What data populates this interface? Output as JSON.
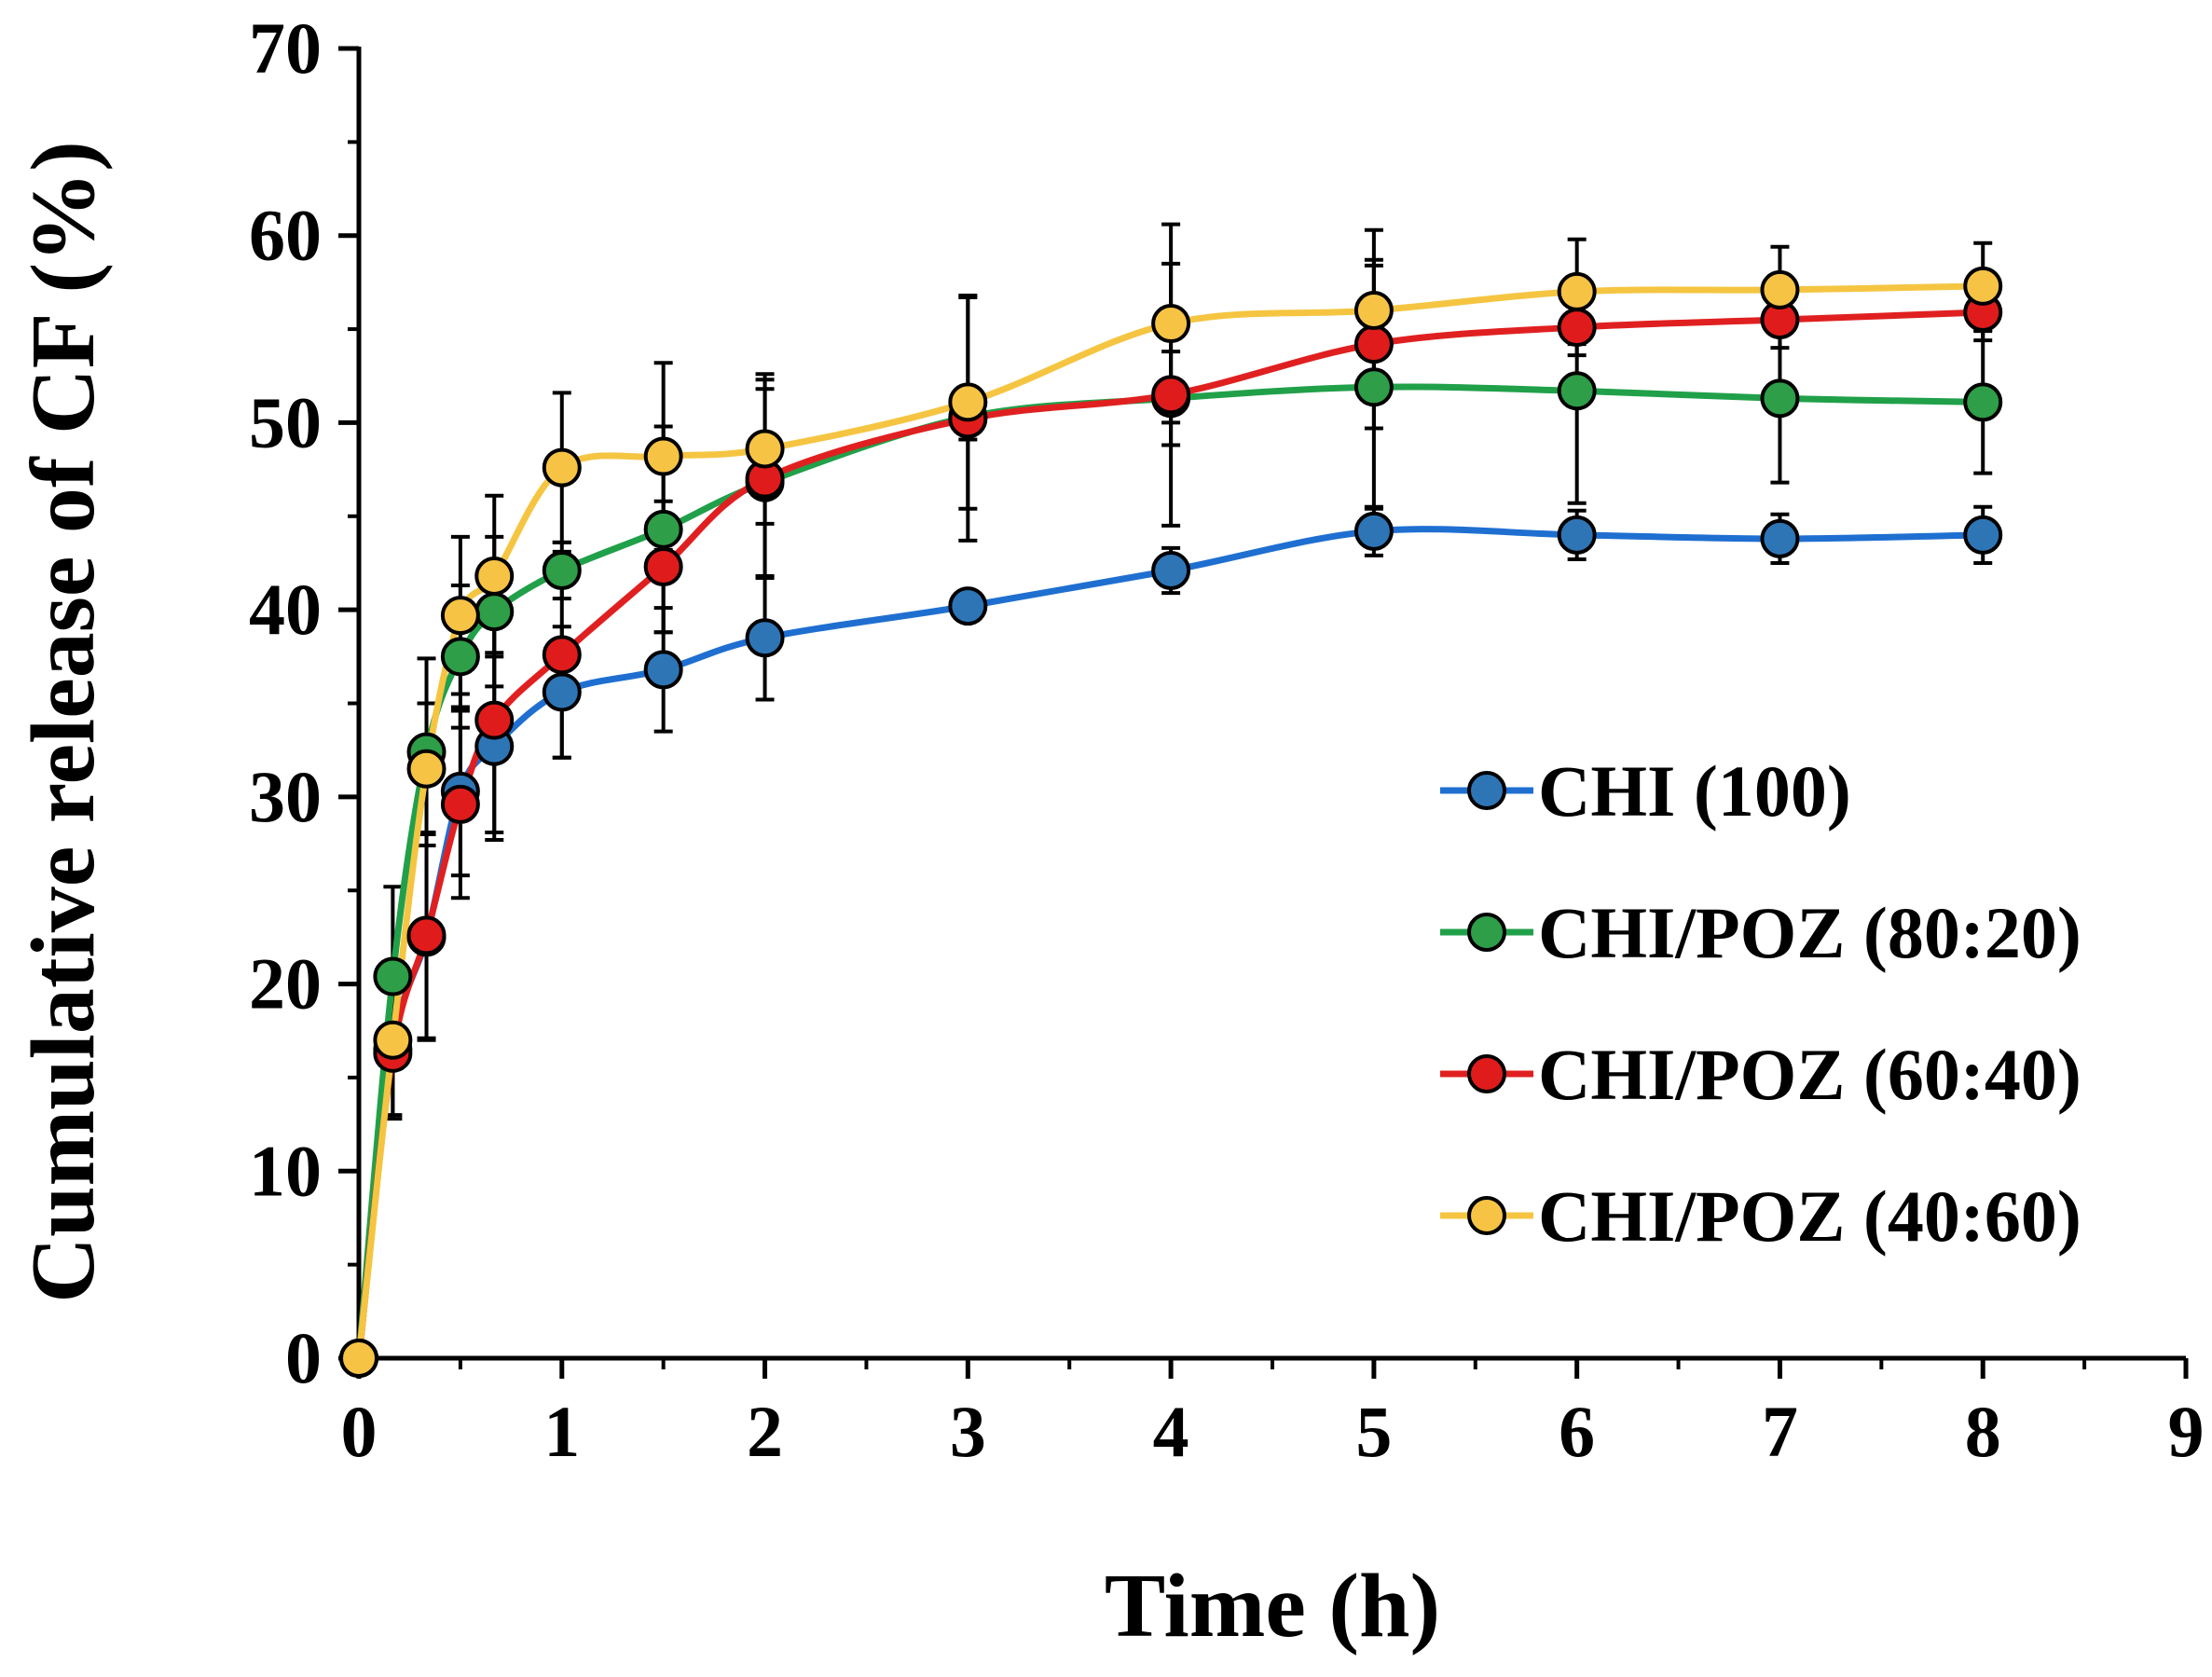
{
  "chart_data": {
    "type": "line",
    "title": "",
    "xlabel": "Time (h)",
    "ylabel": "Cumulative release of CF (%)",
    "xlim": [
      0,
      9
    ],
    "ylim": [
      0,
      70
    ],
    "xticks": [
      "0",
      "1",
      "2",
      "3",
      "4",
      "5",
      "6",
      "7",
      "8",
      "9"
    ],
    "yticks": [
      "0",
      "10",
      "20",
      "30",
      "40",
      "50",
      "60",
      "70"
    ],
    "x_minor_step": 0.5,
    "y_minor_step": 5,
    "grid": false,
    "legend_position": "center-right",
    "error_bars": true,
    "series": [
      {
        "name": "CHI (100)",
        "color": "#1f6fd1",
        "marker_color": "#2e75b6",
        "points": [
          {
            "x": 0,
            "y": 0,
            "err": 0
          },
          {
            "x": 0.167,
            "y": 16.5,
            "err": 3.5
          },
          {
            "x": 0.333,
            "y": 22.5,
            "err": 5.5
          },
          {
            "x": 0.5,
            "y": 30.3,
            "err": 4.5
          },
          {
            "x": 0.667,
            "y": 32.7,
            "err": 5.0
          },
          {
            "x": 1,
            "y": 35.6,
            "err": 3.5
          },
          {
            "x": 1.5,
            "y": 36.8,
            "err": 3.3
          },
          {
            "x": 2,
            "y": 38.5,
            "err": 3.3
          },
          {
            "x": 3,
            "y": 40.2,
            "err": 0.8
          },
          {
            "x": 4,
            "y": 42.1,
            "err": 1.2
          },
          {
            "x": 5,
            "y": 44.2,
            "err": 1.3
          },
          {
            "x": 6,
            "y": 44.0,
            "err": 1.3
          },
          {
            "x": 7,
            "y": 43.8,
            "err": 1.3
          },
          {
            "x": 8,
            "y": 44.0,
            "err": 1.5
          }
        ]
      },
      {
        "name": "CHI/POZ (80:20)",
        "color": "#21a04a",
        "marker_color": "#2e9e48",
        "points": [
          {
            "x": 0,
            "y": 0,
            "err": 0
          },
          {
            "x": 0.167,
            "y": 20.4,
            "err": 4.8
          },
          {
            "x": 0.333,
            "y": 32.4,
            "err": 5.0
          },
          {
            "x": 0.5,
            "y": 37.5,
            "err": 3.8
          },
          {
            "x": 0.667,
            "y": 39.9,
            "err": 4.0
          },
          {
            "x": 1,
            "y": 42.1,
            "err": 1.5
          },
          {
            "x": 1.5,
            "y": 44.3,
            "err": 5.5
          },
          {
            "x": 2,
            "y": 46.8,
            "err": 5.0
          },
          {
            "x": 3,
            "y": 50.3,
            "err": 1.2
          },
          {
            "x": 4,
            "y": 51.3,
            "err": 2.5
          },
          {
            "x": 5,
            "y": 51.9,
            "err": 6.5
          },
          {
            "x": 6,
            "y": 51.7,
            "err": 6.0
          },
          {
            "x": 7,
            "y": 51.3,
            "err": 4.5
          },
          {
            "x": 8,
            "y": 51.1,
            "err": 3.8
          }
        ]
      },
      {
        "name": "CHI/POZ (60:40)",
        "color": "#e02020",
        "marker_color": "#e01b1b",
        "points": [
          {
            "x": 0,
            "y": 0,
            "err": 0
          },
          {
            "x": 0.167,
            "y": 16.3,
            "err": 3.5
          },
          {
            "x": 0.333,
            "y": 22.6,
            "err": 5.5
          },
          {
            "x": 0.5,
            "y": 29.6,
            "err": 5.0
          },
          {
            "x": 0.667,
            "y": 34.1,
            "err": 6.0
          },
          {
            "x": 1,
            "y": 37.6,
            "err": 5.5
          },
          {
            "x": 1.5,
            "y": 42.3,
            "err": 3.5
          },
          {
            "x": 2,
            "y": 47.0,
            "err": 5.3
          },
          {
            "x": 3,
            "y": 50.2,
            "err": 6.5
          },
          {
            "x": 4,
            "y": 51.5,
            "err": 7.0
          },
          {
            "x": 5,
            "y": 54.2,
            "err": 4.5
          },
          {
            "x": 6,
            "y": 55.1,
            "err": 1.5
          },
          {
            "x": 7,
            "y": 55.5,
            "err": 1.5
          },
          {
            "x": 8,
            "y": 55.9,
            "err": 1.5
          }
        ]
      },
      {
        "name": "CHI/POZ (40:60)",
        "color": "#f5c542",
        "marker_color": "#f6c344",
        "points": [
          {
            "x": 0,
            "y": 0,
            "err": 0
          },
          {
            "x": 0.167,
            "y": 17.0,
            "err": 0
          },
          {
            "x": 0.333,
            "y": 31.5,
            "err": 3.5
          },
          {
            "x": 0.5,
            "y": 39.7,
            "err": 4.2
          },
          {
            "x": 0.667,
            "y": 41.8,
            "err": 4.3
          },
          {
            "x": 1,
            "y": 47.6,
            "err": 4.0
          },
          {
            "x": 1.5,
            "y": 48.2,
            "err": 5.0
          },
          {
            "x": 2,
            "y": 48.6,
            "err": 4.0
          },
          {
            "x": 3,
            "y": 51.1,
            "err": 5.7
          },
          {
            "x": 4,
            "y": 55.3,
            "err": 5.3
          },
          {
            "x": 5,
            "y": 56.0,
            "err": 4.3
          },
          {
            "x": 6,
            "y": 57.0,
            "err": 2.8
          },
          {
            "x": 7,
            "y": 57.1,
            "err": 2.3
          },
          {
            "x": 8,
            "y": 57.3,
            "err": 2.3
          }
        ]
      }
    ]
  }
}
